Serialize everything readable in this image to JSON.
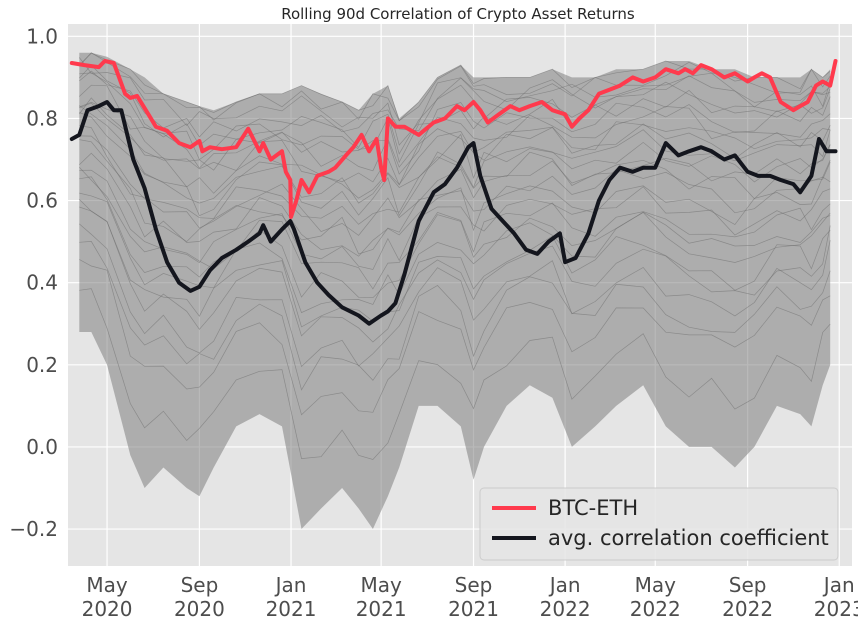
{
  "chart_data": {
    "type": "line",
    "title": "Rolling 90d Correlation of Crypto Asset Returns",
    "xlabel": "",
    "ylabel": "",
    "x_range": [
      "2020-03-10",
      "2023-01-18"
    ],
    "ylim": [
      -0.29,
      1.03
    ],
    "grid": true,
    "legend_position": "bottom-right",
    "background_color": "#e5e5e5",
    "grid_color": "#ffffff",
    "x_ticks": [
      {
        "date": "2020-05-01",
        "label_line1": "May",
        "label_line2": "2020"
      },
      {
        "date": "2020-09-01",
        "label_line1": "Sep",
        "label_line2": "2020"
      },
      {
        "date": "2021-01-01",
        "label_line1": "Jan",
        "label_line2": "2021"
      },
      {
        "date": "2021-05-01",
        "label_line1": "May",
        "label_line2": "2021"
      },
      {
        "date": "2021-09-01",
        "label_line1": "Sep",
        "label_line2": "2021"
      },
      {
        "date": "2022-01-01",
        "label_line1": "Jan",
        "label_line2": "2022"
      },
      {
        "date": "2022-05-01",
        "label_line1": "May",
        "label_line2": "2022"
      },
      {
        "date": "2022-09-01",
        "label_line1": "Sep",
        "label_line2": "2022"
      },
      {
        "date": "2023-01-01",
        "label_line1": "Jan",
        "label_line2": "2023"
      }
    ],
    "y_ticks": [
      {
        "value": -0.2,
        "label": "−0.2"
      },
      {
        "value": 0.0,
        "label": "0.0"
      },
      {
        "value": 0.2,
        "label": "0.2"
      },
      {
        "value": 0.4,
        "label": "0.4"
      },
      {
        "value": 0.6,
        "label": "0.6"
      },
      {
        "value": 0.8,
        "label": "0.8"
      },
      {
        "value": 1.0,
        "label": "1.0"
      }
    ],
    "background_band": {
      "color": "#808080",
      "dates": [
        "2020-03-25",
        "2020-04-10",
        "2020-05-01",
        "2020-06-01",
        "2020-06-20",
        "2020-07-15",
        "2020-08-15",
        "2020-09-01",
        "2020-09-20",
        "2020-10-20",
        "2020-11-20",
        "2020-12-20",
        "2021-01-15",
        "2021-02-10",
        "2021-03-10",
        "2021-04-01",
        "2021-04-20",
        "2021-05-10",
        "2021-05-25",
        "2021-06-20",
        "2021-07-15",
        "2021-08-15",
        "2021-09-01",
        "2021-09-15",
        "2021-10-15",
        "2021-11-15",
        "2021-12-15",
        "2022-01-10",
        "2022-02-10",
        "2022-03-10",
        "2022-04-15",
        "2022-05-15",
        "2022-06-15",
        "2022-07-15",
        "2022-08-15",
        "2022-09-10",
        "2022-10-10",
        "2022-11-10",
        "2022-11-25",
        "2022-12-10",
        "2022-12-20"
      ],
      "upper": [
        0.96,
        0.96,
        0.95,
        0.92,
        0.9,
        0.86,
        0.84,
        0.83,
        0.82,
        0.84,
        0.86,
        0.86,
        0.88,
        0.86,
        0.84,
        0.82,
        0.86,
        0.88,
        0.8,
        0.84,
        0.9,
        0.93,
        0.9,
        0.9,
        0.9,
        0.9,
        0.92,
        0.9,
        0.9,
        0.92,
        0.92,
        0.94,
        0.94,
        0.92,
        0.92,
        0.9,
        0.9,
        0.9,
        0.92,
        0.9,
        0.92
      ],
      "lower": [
        0.28,
        0.28,
        0.2,
        -0.02,
        -0.1,
        -0.05,
        -0.1,
        -0.12,
        -0.05,
        0.05,
        0.08,
        0.05,
        -0.2,
        -0.15,
        -0.1,
        -0.15,
        -0.2,
        -0.12,
        -0.05,
        0.1,
        0.1,
        0.05,
        -0.08,
        0.0,
        0.1,
        0.15,
        0.12,
        0.0,
        0.05,
        0.1,
        0.15,
        0.05,
        0.0,
        0.0,
        -0.05,
        0.0,
        0.1,
        0.08,
        0.05,
        0.15,
        0.2
      ]
    },
    "series": [
      {
        "name": "BTC-ETH",
        "color": "#ff3a4d",
        "x": [
          "2020-03-15",
          "2020-04-01",
          "2020-04-20",
          "2020-04-28",
          "2020-05-10",
          "2020-05-25",
          "2020-06-01",
          "2020-06-10",
          "2020-06-25",
          "2020-07-05",
          "2020-07-20",
          "2020-08-05",
          "2020-08-20",
          "2020-09-01",
          "2020-09-05",
          "2020-09-15",
          "2020-10-01",
          "2020-10-20",
          "2020-11-05",
          "2020-11-20",
          "2020-11-25",
          "2020-12-05",
          "2020-12-20",
          "2020-12-25",
          "2020-12-31",
          "2021-01-01",
          "2021-01-08",
          "2021-01-15",
          "2021-01-25",
          "2021-02-05",
          "2021-02-20",
          "2021-03-01",
          "2021-03-15",
          "2021-03-25",
          "2021-04-05",
          "2021-04-15",
          "2021-04-25",
          "2021-05-01",
          "2021-05-05",
          "2021-05-10",
          "2021-05-20",
          "2021-06-01",
          "2021-06-20",
          "2021-07-10",
          "2021-07-25",
          "2021-08-10",
          "2021-08-20",
          "2021-09-01",
          "2021-09-10",
          "2021-09-20",
          "2021-10-05",
          "2021-10-20",
          "2021-11-01",
          "2021-11-15",
          "2021-12-01",
          "2021-12-15",
          "2022-01-01",
          "2022-01-10",
          "2022-01-20",
          "2022-02-01",
          "2022-02-15",
          "2022-03-01",
          "2022-03-15",
          "2022-04-01",
          "2022-04-15",
          "2022-05-01",
          "2022-05-15",
          "2022-06-01",
          "2022-06-10",
          "2022-06-20",
          "2022-07-01",
          "2022-07-15",
          "2022-08-01",
          "2022-08-15",
          "2022-09-01",
          "2022-09-10",
          "2022-09-20",
          "2022-10-01",
          "2022-10-15",
          "2022-11-01",
          "2022-11-10",
          "2022-11-20",
          "2022-12-01",
          "2022-12-10",
          "2022-12-20",
          "2022-12-27"
        ],
        "values": [
          0.935,
          0.93,
          0.925,
          0.94,
          0.935,
          0.86,
          0.85,
          0.855,
          0.81,
          0.78,
          0.77,
          0.74,
          0.73,
          0.745,
          0.72,
          0.73,
          0.725,
          0.73,
          0.775,
          0.72,
          0.74,
          0.7,
          0.72,
          0.67,
          0.65,
          0.56,
          0.6,
          0.65,
          0.62,
          0.66,
          0.67,
          0.68,
          0.71,
          0.73,
          0.76,
          0.72,
          0.75,
          0.68,
          0.65,
          0.8,
          0.78,
          0.78,
          0.76,
          0.79,
          0.8,
          0.83,
          0.82,
          0.84,
          0.82,
          0.79,
          0.81,
          0.83,
          0.82,
          0.83,
          0.84,
          0.82,
          0.81,
          0.78,
          0.8,
          0.82,
          0.86,
          0.87,
          0.88,
          0.9,
          0.89,
          0.9,
          0.92,
          0.91,
          0.92,
          0.91,
          0.93,
          0.92,
          0.9,
          0.91,
          0.89,
          0.9,
          0.91,
          0.9,
          0.84,
          0.82,
          0.83,
          0.84,
          0.88,
          0.89,
          0.88,
          0.94
        ]
      },
      {
        "name": "avg. correlation coefficient",
        "color": "#14161e",
        "x": [
          "2020-03-15",
          "2020-03-25",
          "2020-04-05",
          "2020-04-20",
          "2020-05-01",
          "2020-05-10",
          "2020-05-20",
          "2020-05-28",
          "2020-06-05",
          "2020-06-20",
          "2020-07-05",
          "2020-07-20",
          "2020-08-05",
          "2020-08-20",
          "2020-09-01",
          "2020-09-15",
          "2020-10-01",
          "2020-10-20",
          "2020-11-05",
          "2020-11-20",
          "2020-11-25",
          "2020-12-05",
          "2020-12-20",
          "2020-12-31",
          "2021-01-05",
          "2021-01-20",
          "2021-02-05",
          "2021-02-20",
          "2021-03-10",
          "2021-04-01",
          "2021-04-15",
          "2021-05-01",
          "2021-05-10",
          "2021-05-20",
          "2021-06-01",
          "2021-06-20",
          "2021-07-10",
          "2021-07-25",
          "2021-08-10",
          "2021-08-25",
          "2021-09-01",
          "2021-09-10",
          "2021-09-25",
          "2021-10-10",
          "2021-10-25",
          "2021-11-10",
          "2021-11-25",
          "2021-12-10",
          "2021-12-25",
          "2022-01-01",
          "2022-01-15",
          "2022-02-01",
          "2022-02-15",
          "2022-03-01",
          "2022-03-15",
          "2022-04-01",
          "2022-04-15",
          "2022-05-01",
          "2022-05-15",
          "2022-06-01",
          "2022-06-15",
          "2022-07-01",
          "2022-07-15",
          "2022-08-01",
          "2022-08-15",
          "2022-09-01",
          "2022-09-15",
          "2022-10-01",
          "2022-10-15",
          "2022-11-01",
          "2022-11-10",
          "2022-11-25",
          "2022-12-05",
          "2022-12-15",
          "2022-12-27"
        ],
        "values": [
          0.75,
          0.76,
          0.82,
          0.83,
          0.84,
          0.82,
          0.82,
          0.76,
          0.7,
          0.63,
          0.53,
          0.45,
          0.4,
          0.38,
          0.39,
          0.43,
          0.46,
          0.48,
          0.5,
          0.52,
          0.54,
          0.5,
          0.53,
          0.55,
          0.53,
          0.45,
          0.4,
          0.37,
          0.34,
          0.32,
          0.3,
          0.32,
          0.33,
          0.35,
          0.42,
          0.55,
          0.62,
          0.64,
          0.68,
          0.73,
          0.74,
          0.66,
          0.58,
          0.55,
          0.52,
          0.48,
          0.47,
          0.5,
          0.52,
          0.45,
          0.46,
          0.52,
          0.6,
          0.65,
          0.68,
          0.67,
          0.68,
          0.68,
          0.74,
          0.71,
          0.72,
          0.73,
          0.72,
          0.7,
          0.71,
          0.67,
          0.66,
          0.66,
          0.65,
          0.64,
          0.62,
          0.66,
          0.75,
          0.72,
          0.72
        ]
      }
    ]
  }
}
